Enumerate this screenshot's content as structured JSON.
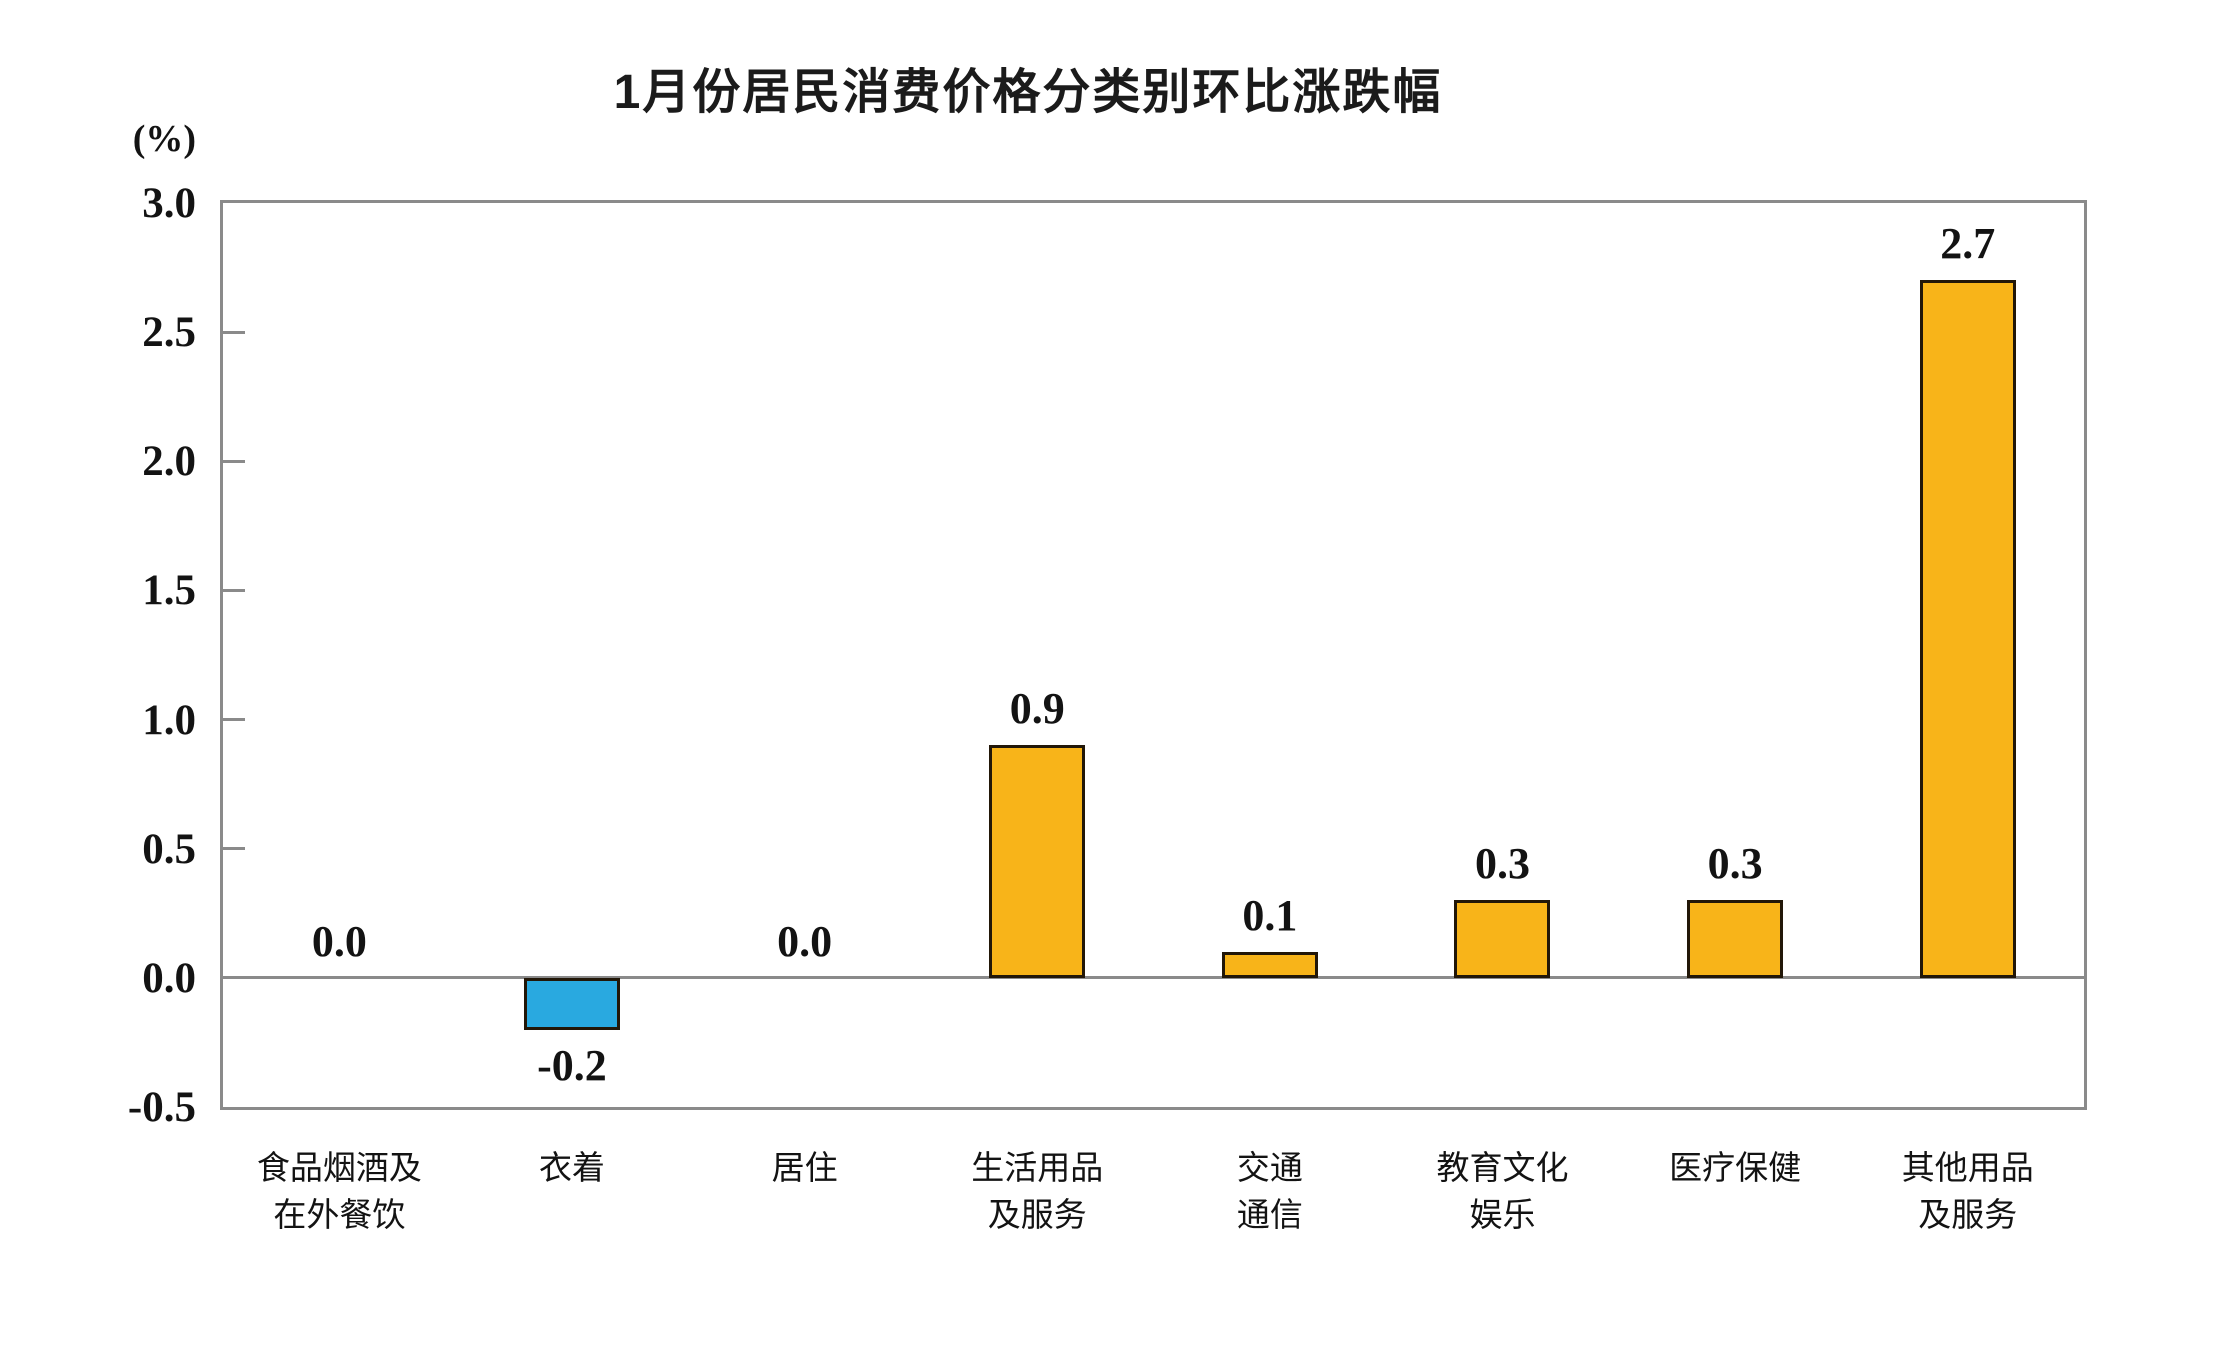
{
  "chart_data": {
    "type": "bar",
    "title": "1月份居民消费价格分类别环比涨跌幅",
    "ylabel": "(%)",
    "xlabel": "",
    "ylim": [
      -0.5,
      3.0
    ],
    "ytick_step": 0.5,
    "yticks": [
      3.0,
      2.5,
      2.0,
      1.5,
      1.0,
      0.5,
      0.0,
      -0.5
    ],
    "ytick_labels": [
      "3.0",
      "2.5",
      "2.0",
      "1.5",
      "1.0",
      "0.5",
      "0.0",
      "-0.5"
    ],
    "grid": false,
    "legend": false,
    "zero_baseline": true,
    "categories": [
      {
        "name": "food-tobacco-dining",
        "lines": [
          "食品烟酒及",
          "在外餐饮"
        ]
      },
      {
        "name": "clothing",
        "lines": [
          "衣着"
        ]
      },
      {
        "name": "housing",
        "lines": [
          "居住"
        ]
      },
      {
        "name": "household-goods-services",
        "lines": [
          "生活用品",
          "及服务"
        ]
      },
      {
        "name": "transport-communication",
        "lines": [
          "交通",
          "通信"
        ]
      },
      {
        "name": "education-culture-entertainment",
        "lines": [
          "教育文化",
          "娱乐"
        ]
      },
      {
        "name": "healthcare",
        "lines": [
          "医疗保健"
        ]
      },
      {
        "name": "other-goods-services",
        "lines": [
          "其他用品",
          "及服务"
        ]
      }
    ],
    "values": [
      0.0,
      -0.2,
      0.0,
      0.9,
      0.1,
      0.3,
      0.3,
      2.7
    ],
    "value_labels": [
      "0.0",
      "-0.2",
      "0.0",
      "0.9",
      "0.1",
      "0.3",
      "0.3",
      "2.7"
    ],
    "colors": {
      "bar_positive": "#F8B419",
      "bar_negative": "#29A9E0",
      "bar_border": "#221708",
      "axis_line": "#8A8A8A",
      "text": "#131313"
    }
  }
}
